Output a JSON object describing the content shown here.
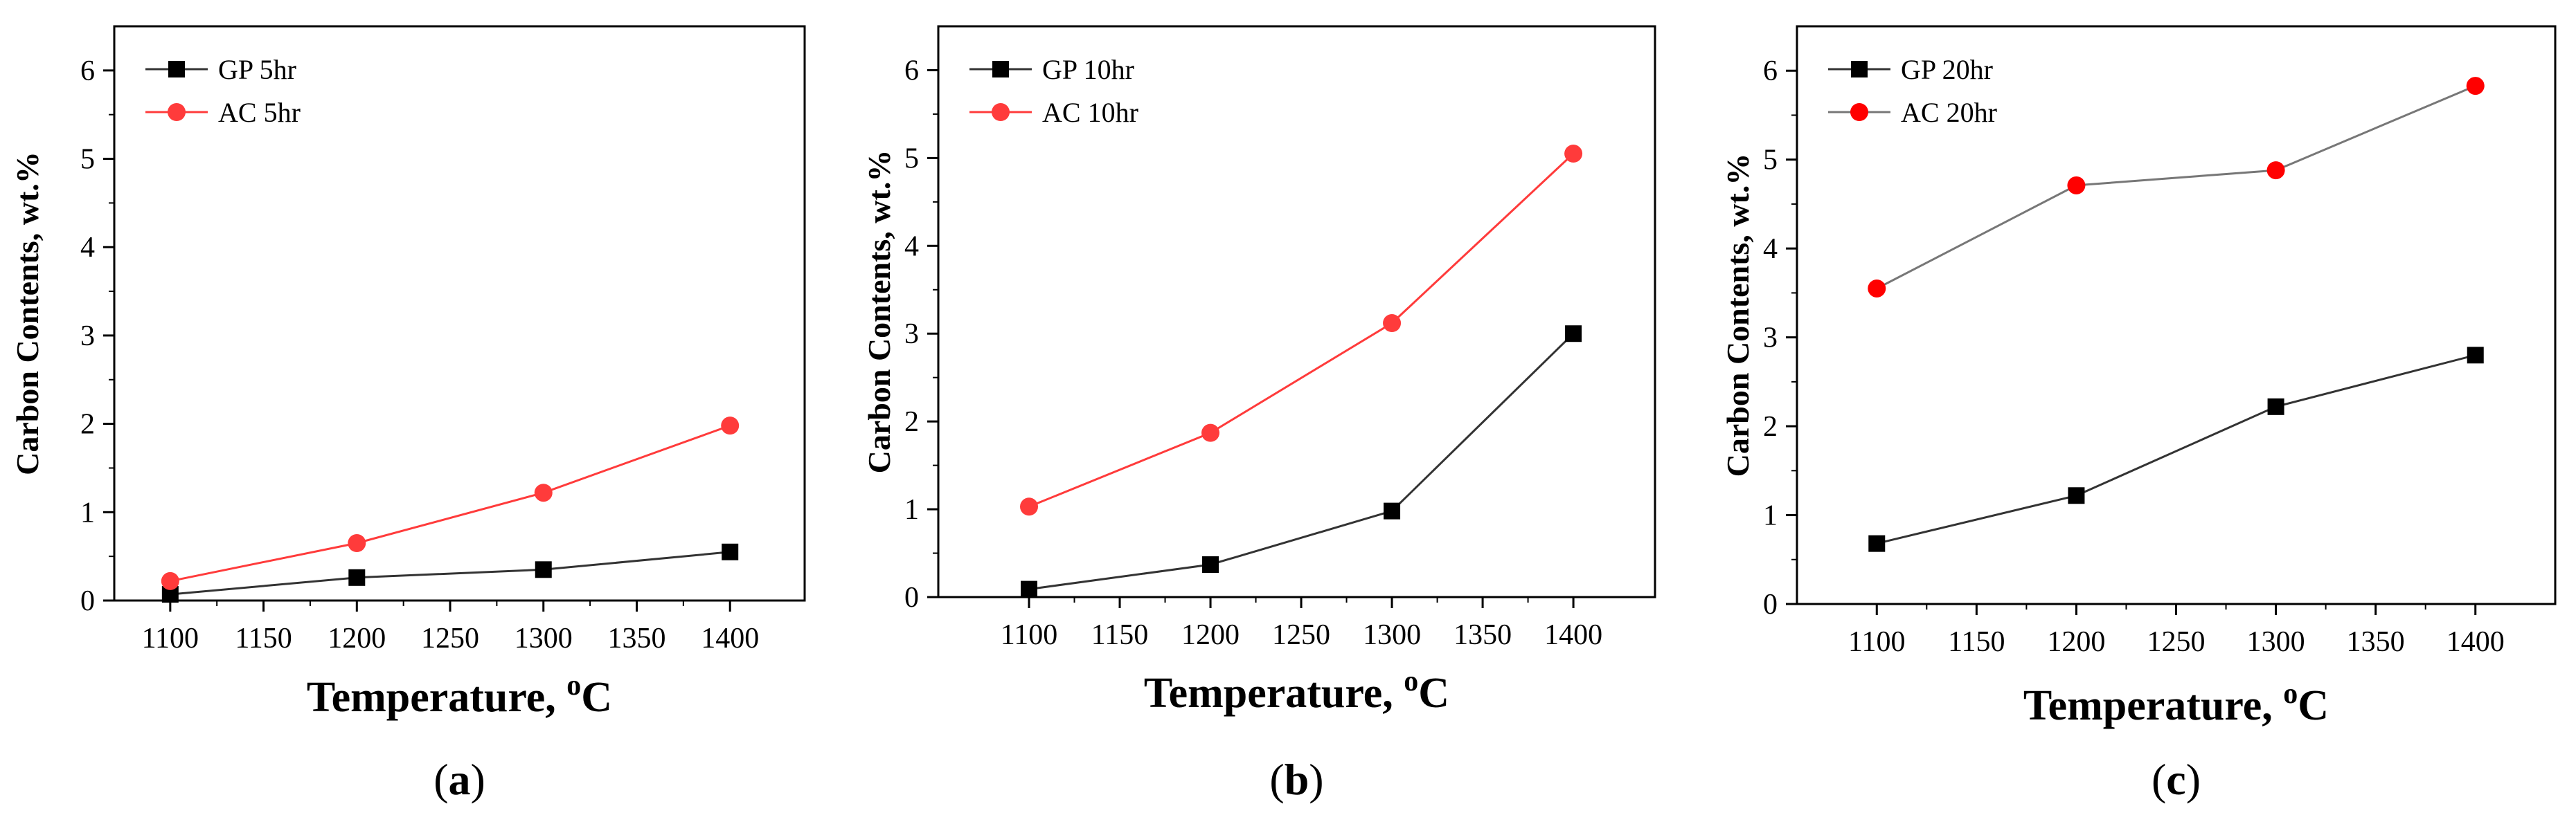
{
  "chart_data": [
    {
      "type": "line",
      "panel_label": "(a)",
      "label_letter": "a",
      "xlabel": "Temperature, ",
      "xlabel_sup": "o",
      "xlabel_unit": "C",
      "ylabel": "Carbon Contents, wt.%",
      "x": [
        1100,
        1200,
        1300,
        1400
      ],
      "x_ticks": [
        1100,
        1150,
        1200,
        1250,
        1300,
        1350,
        1400
      ],
      "y_ticks": [
        0,
        1,
        2,
        3,
        4,
        5,
        6
      ],
      "xlim": [
        1070,
        1440
      ],
      "ylim": [
        0,
        6.5
      ],
      "legend_position": "top-left",
      "series": [
        {
          "name": "GP 5hr",
          "marker": "square",
          "color": "#000000",
          "line_color": "#333333",
          "values": [
            0.07,
            0.26,
            0.35,
            0.55
          ]
        },
        {
          "name": "AC 5hr",
          "marker": "circle",
          "color": "#ff3b3b",
          "line_color": "#ff3b3b",
          "values": [
            0.22,
            0.65,
            1.22,
            1.98
          ]
        }
      ]
    },
    {
      "type": "line",
      "panel_label": "(b)",
      "label_letter": "b",
      "xlabel": "Temperature, ",
      "xlabel_sup": "o",
      "xlabel_unit": "C",
      "ylabel": "Carbon Contents, wt.%",
      "x": [
        1100,
        1200,
        1300,
        1400
      ],
      "x_ticks": [
        1100,
        1150,
        1200,
        1250,
        1300,
        1350,
        1400
      ],
      "y_ticks": [
        0,
        1,
        2,
        3,
        4,
        5,
        6
      ],
      "xlim": [
        1050,
        1445
      ],
      "ylim": [
        0,
        6.5
      ],
      "legend_position": "top-left",
      "series": [
        {
          "name": "GP 10hr",
          "marker": "square",
          "color": "#000000",
          "line_color": "#333333",
          "values": [
            0.09,
            0.37,
            0.98,
            3.0
          ]
        },
        {
          "name": "AC 10hr",
          "marker": "circle",
          "color": "#ff3b3b",
          "line_color": "#ff3b3b",
          "values": [
            1.03,
            1.87,
            3.12,
            5.05
          ]
        }
      ]
    },
    {
      "type": "line",
      "panel_label": "(c)",
      "label_letter": "c",
      "xlabel": "Temperature, ",
      "xlabel_sup": "o",
      "xlabel_unit": "C",
      "ylabel": "Carbon Contents, wt.%",
      "x": [
        1100,
        1200,
        1300,
        1400
      ],
      "x_ticks": [
        1100,
        1150,
        1200,
        1250,
        1300,
        1350,
        1400
      ],
      "y_ticks": [
        0,
        1,
        2,
        3,
        4,
        5,
        6
      ],
      "xlim": [
        1060,
        1440
      ],
      "ylim": [
        0,
        6.5
      ],
      "legend_position": "top-left",
      "series": [
        {
          "name": "GP 20hr",
          "marker": "square",
          "color": "#000000",
          "line_color": "#333333",
          "values": [
            0.68,
            1.22,
            2.22,
            2.8
          ]
        },
        {
          "name": "AC 20hr",
          "marker": "circle",
          "color": "#ff0000",
          "line_color": "#777777",
          "values": [
            3.55,
            4.71,
            4.88,
            5.83
          ]
        }
      ]
    }
  ]
}
